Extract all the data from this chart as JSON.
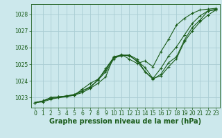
{
  "title": "Graphe pression niveau de la mer (hPa)",
  "bg_color": "#cce8ec",
  "grid_color": "#aacdd4",
  "line_color": "#1a5c1a",
  "xlim": [
    -0.5,
    23.5
  ],
  "ylim": [
    1022.4,
    1028.6
  ],
  "yticks": [
    1023,
    1024,
    1025,
    1026,
    1027,
    1028
  ],
  "xticks": [
    0,
    1,
    2,
    3,
    4,
    5,
    6,
    7,
    8,
    9,
    10,
    11,
    12,
    13,
    14,
    15,
    16,
    17,
    18,
    19,
    20,
    21,
    22,
    23
  ],
  "series": [
    [
      1022.7,
      1022.8,
      1022.95,
      1023.0,
      1023.05,
      1023.15,
      1023.3,
      1023.55,
      1023.85,
      1024.25,
      1025.45,
      1025.55,
      1025.55,
      1025.3,
      1024.55,
      1024.1,
      1024.4,
      1025.1,
      1025.45,
      1026.45,
      1027.2,
      1027.65,
      1028.2,
      1028.25
    ],
    [
      1022.7,
      1022.8,
      1023.0,
      1023.05,
      1023.1,
      1023.2,
      1023.4,
      1023.65,
      1024.05,
      1024.55,
      1025.3,
      1025.6,
      1025.3,
      1025.05,
      1025.2,
      1024.85,
      1025.75,
      1026.5,
      1027.35,
      1027.75,
      1028.05,
      1028.25,
      1028.3,
      1028.35
    ],
    [
      1022.7,
      1022.8,
      1023.0,
      1023.05,
      1023.1,
      1023.15,
      1023.4,
      1023.6,
      1024.05,
      1024.75,
      1025.4,
      1025.5,
      1025.55,
      1025.15,
      1024.55,
      1024.15,
      1024.3,
      1024.85,
      1025.35,
      1026.35,
      1027.0,
      1027.55,
      1027.95,
      1028.25
    ],
    [
      1022.7,
      1022.75,
      1022.9,
      1023.0,
      1023.1,
      1023.15,
      1023.5,
      1023.85,
      1024.1,
      1024.65,
      1025.4,
      1025.55,
      1025.5,
      1025.2,
      1024.8,
      1024.15,
      1024.75,
      1025.5,
      1026.05,
      1026.75,
      1027.45,
      1027.9,
      1028.2,
      1028.3
    ]
  ],
  "title_fontsize": 7,
  "tick_fontsize": 5.5,
  "label_color": "#1a5c1a"
}
